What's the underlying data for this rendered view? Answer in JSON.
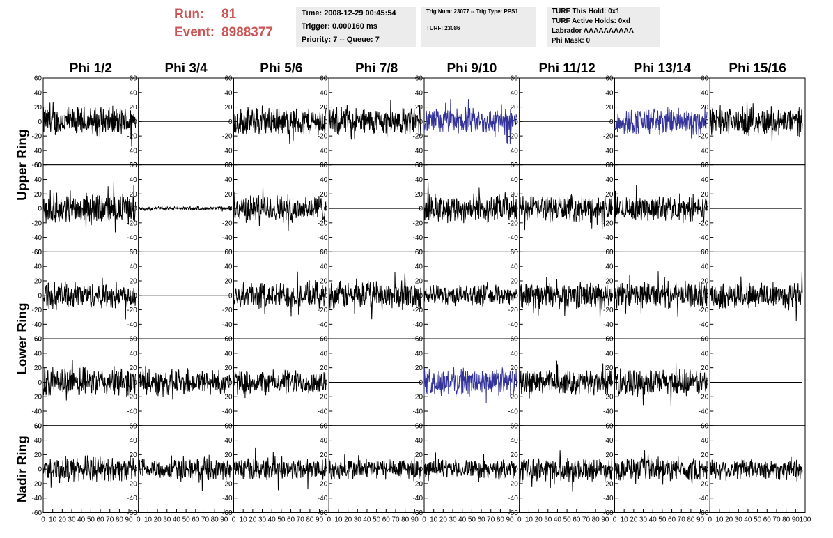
{
  "header": {
    "run_label": "Run:",
    "run_value": "81",
    "event_label": "Event:",
    "event_value": "8988377",
    "time": "Time: 2008-12-29 00:45:54",
    "trigger": "Trigger: 0.000160 ms",
    "priority": "Priority: 7 -- Queue: 7",
    "trig_num": "Trig Num: 23077 -- Trig Type: PPS1",
    "turf": "TURF: 23086",
    "turf_hold": "TURF This Hold: 0x1",
    "turf_active": "TURF Active Holds: 0xd",
    "labrador": "Labrador AAAAAAAAAA",
    "phi_mask": "Phi Mask: 0"
  },
  "chart_data": {
    "type": "line",
    "columns": [
      "Phi 1/2",
      "Phi 3/4",
      "Phi 5/6",
      "Phi 7/8",
      "Phi 9/10",
      "Phi 11/12",
      "Phi 13/14",
      "Phi 15/16"
    ],
    "row_titles": [
      "Upper Ring",
      "Lower Ring",
      "Nadir Ring"
    ],
    "ylim": [
      -60,
      60
    ],
    "y_ticks": [
      -60,
      -40,
      -20,
      0,
      20,
      40,
      60
    ],
    "xlim": [
      0,
      100
    ],
    "x_ticks": [
      0,
      10,
      20,
      30,
      40,
      50,
      60,
      70,
      80,
      90,
      100
    ],
    "line_color": "#000000",
    "highlight_color": "#333399",
    "panels": [
      [
        {
          "kind": "noise",
          "amp": 18,
          "color": "#000000"
        },
        {
          "kind": "flat",
          "amp": 0,
          "color": "#000000"
        },
        {
          "kind": "noise",
          "amp": 17,
          "color": "#000000"
        },
        {
          "kind": "noise",
          "amp": 17,
          "color": "#000000"
        },
        {
          "kind": "noise",
          "amp": 16,
          "color": "#333399"
        },
        {
          "kind": "flat",
          "amp": 0,
          "color": "#000000"
        },
        {
          "kind": "noise",
          "amp": 17,
          "color": "#333399"
        },
        {
          "kind": "noise",
          "amp": 17,
          "color": "#000000"
        }
      ],
      [
        {
          "kind": "noise",
          "amp": 18,
          "color": "#000000"
        },
        {
          "kind": "noise",
          "amp": 2,
          "color": "#000000"
        },
        {
          "kind": "noise",
          "amp": 17,
          "color": "#000000"
        },
        {
          "kind": "flat",
          "amp": 0,
          "color": "#000000"
        },
        {
          "kind": "noise",
          "amp": 17,
          "color": "#000000"
        },
        {
          "kind": "noise",
          "amp": 16,
          "color": "#000000"
        },
        {
          "kind": "noise",
          "amp": 15,
          "color": "#000000"
        },
        {
          "kind": "flat",
          "amp": 0,
          "color": "#000000"
        }
      ],
      [
        {
          "kind": "noise",
          "amp": 16,
          "color": "#000000"
        },
        {
          "kind": "flat",
          "amp": 0,
          "color": "#000000"
        },
        {
          "kind": "noise",
          "amp": 16,
          "color": "#000000"
        },
        {
          "kind": "noise",
          "amp": 17,
          "color": "#000000"
        },
        {
          "kind": "noise",
          "amp": 12,
          "color": "#000000"
        },
        {
          "kind": "noise",
          "amp": 16,
          "color": "#000000"
        },
        {
          "kind": "noise",
          "amp": 16,
          "color": "#000000"
        },
        {
          "kind": "noise",
          "amp": 17,
          "color": "#000000"
        }
      ],
      [
        {
          "kind": "noise",
          "amp": 18,
          "color": "#000000"
        },
        {
          "kind": "noise",
          "amp": 16,
          "color": "#000000"
        },
        {
          "kind": "noise",
          "amp": 15,
          "color": "#000000"
        },
        {
          "kind": "flat",
          "amp": 0,
          "color": "#000000"
        },
        {
          "kind": "noise",
          "amp": 17,
          "color": "#333399"
        },
        {
          "kind": "noise",
          "amp": 15,
          "color": "#000000"
        },
        {
          "kind": "noise",
          "amp": 16,
          "color": "#000000"
        },
        {
          "kind": "flat",
          "amp": 0,
          "color": "#000000"
        }
      ],
      [
        {
          "kind": "noise",
          "amp": 15,
          "color": "#000000"
        },
        {
          "kind": "noise",
          "amp": 13,
          "color": "#000000"
        },
        {
          "kind": "noise",
          "amp": 14,
          "color": "#000000"
        },
        {
          "kind": "noise",
          "amp": 13,
          "color": "#000000"
        },
        {
          "kind": "noise",
          "amp": 11,
          "color": "#000000"
        },
        {
          "kind": "noise",
          "amp": 14,
          "color": "#000000"
        },
        {
          "kind": "noise",
          "amp": 14,
          "color": "#000000"
        },
        {
          "kind": "noise",
          "amp": 13,
          "color": "#000000"
        }
      ]
    ]
  }
}
